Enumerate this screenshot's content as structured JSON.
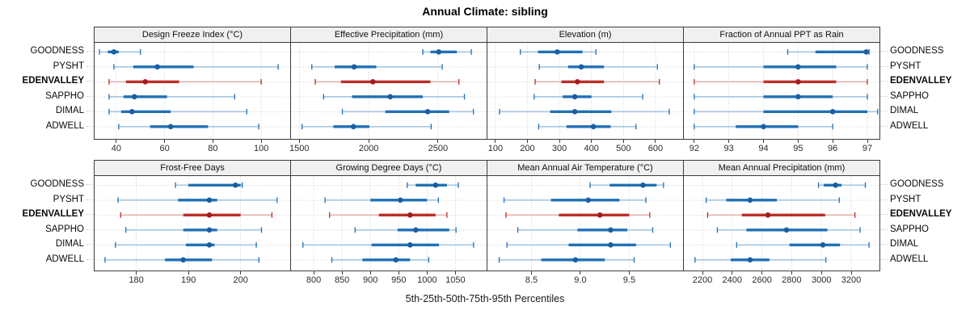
{
  "title": "Annual Climate: sibling",
  "axis_title": "5th-25th-50th-75th-95th Percentiles",
  "stations": [
    {
      "name": "GOODNESS",
      "highlight": false
    },
    {
      "name": "PYSHT",
      "highlight": false
    },
    {
      "name": "EDENVALLEY",
      "highlight": true
    },
    {
      "name": "SAPPHO",
      "highlight": false
    },
    {
      "name": "DIMAL",
      "highlight": false
    },
    {
      "name": "ADWELL",
      "highlight": false
    }
  ],
  "colors": {
    "blue": "#2171b5",
    "blue_light": "#a6c6e2",
    "blue_dot": "#1a5fa0",
    "red": "#bb2e28",
    "red_light": "#e5b1ae",
    "red_dot": "#a31d1d",
    "grid": "#d3d3d3",
    "border": "#3c3c3c",
    "strip_bg": "#f0f0f0"
  },
  "chart_data": [
    {
      "type": "interval",
      "title": "Design Freeze Index (°C)",
      "xlim": [
        31,
        112
      ],
      "ticks": [
        40,
        60,
        80,
        100
      ],
      "tick_labels": [
        "40",
        "60",
        "80",
        "100"
      ],
      "series": [
        {
          "station": "GOODNESS",
          "p": [
            33,
            36.5,
            39,
            41,
            50
          ]
        },
        {
          "station": "PYSHT",
          "p": [
            39,
            47,
            57,
            72,
            107
          ]
        },
        {
          "station": "EDENVALLEY",
          "p": [
            37,
            44,
            52,
            66,
            100
          ]
        },
        {
          "station": "SAPPHO",
          "p": [
            37,
            43,
            47.5,
            61,
            89
          ]
        },
        {
          "station": "DIMAL",
          "p": [
            37,
            42,
            46.5,
            62.5,
            94
          ]
        },
        {
          "station": "ADWELL",
          "p": [
            41,
            54,
            62.5,
            78,
            99
          ]
        }
      ]
    },
    {
      "type": "interval",
      "title": "Effective Precipitation (mm)",
      "xlim": [
        1440,
        2850
      ],
      "ticks": [
        1500,
        2000,
        2500
      ],
      "tick_labels": [
        "1500",
        "2000",
        "2500"
      ],
      "series": [
        {
          "station": "GOODNESS",
          "p": [
            2390,
            2445,
            2505,
            2635,
            2740
          ]
        },
        {
          "station": "PYSHT",
          "p": [
            1590,
            1755,
            1895,
            2055,
            2530
          ]
        },
        {
          "station": "EDENVALLEY",
          "p": [
            1615,
            1800,
            2030,
            2445,
            2650
          ]
        },
        {
          "station": "SAPPHO",
          "p": [
            1675,
            1880,
            2155,
            2390,
            2690
          ]
        },
        {
          "station": "DIMAL",
          "p": [
            1810,
            2120,
            2425,
            2580,
            2755
          ]
        },
        {
          "station": "ADWELL",
          "p": [
            1520,
            1745,
            1890,
            2005,
            2450
          ]
        }
      ]
    },
    {
      "type": "interval",
      "title": "Elevation (m)",
      "xlim": [
        75,
        686
      ],
      "ticks": [
        100,
        200,
        300,
        400,
        500,
        600
      ],
      "tick_labels": [
        "100",
        "200",
        "300",
        "400",
        "500",
        "600"
      ],
      "series": [
        {
          "station": "GOODNESS",
          "p": [
            178,
            233,
            293,
            372,
            414
          ]
        },
        {
          "station": "PYSHT",
          "p": [
            237,
            327,
            368,
            439,
            606
          ]
        },
        {
          "station": "EDENVALLEY",
          "p": [
            224,
            306,
            356,
            439,
            612
          ]
        },
        {
          "station": "SAPPHO",
          "p": [
            221,
            310,
            348,
            400,
            560
          ]
        },
        {
          "station": "DIMAL",
          "p": [
            113,
            271,
            348,
            462,
            643
          ]
        },
        {
          "station": "ADWELL",
          "p": [
            235,
            322,
            406,
            460,
            539
          ]
        }
      ]
    },
    {
      "type": "interval",
      "title": "Fraction of Annual PPT as Rain",
      "xlim": [
        91.7,
        97.35
      ],
      "ticks": [
        92,
        93,
        94,
        95,
        96,
        97
      ],
      "tick_labels": [
        "92",
        "93",
        "94",
        "95",
        "96",
        "97"
      ],
      "series": [
        {
          "station": "GOODNESS",
          "p": [
            94.7,
            95.5,
            96.97,
            97.0,
            97.05
          ]
        },
        {
          "station": "PYSHT",
          "p": [
            92,
            94,
            95,
            96.1,
            97
          ]
        },
        {
          "station": "EDENVALLEY",
          "p": [
            92,
            94,
            95,
            96.1,
            97
          ]
        },
        {
          "station": "SAPPHO",
          "p": [
            92,
            94,
            95,
            96,
            97
          ]
        },
        {
          "station": "DIMAL",
          "p": [
            92,
            94,
            96,
            97,
            97.3
          ]
        },
        {
          "station": "ADWELL",
          "p": [
            92,
            93.2,
            94,
            95,
            96
          ]
        }
      ]
    },
    {
      "type": "interval",
      "title": "Frost-Free Days",
      "xlim": [
        172,
        209.5
      ],
      "ticks": [
        180,
        190,
        200
      ],
      "tick_labels": [
        "180",
        "190",
        "200"
      ],
      "series": [
        {
          "station": "GOODNESS",
          "p": [
            187.5,
            190,
            199,
            200,
            200.3
          ]
        },
        {
          "station": "PYSHT",
          "p": [
            176.5,
            188,
            194,
            195.5,
            207
          ]
        },
        {
          "station": "EDENVALLEY",
          "p": [
            177,
            189,
            194,
            200,
            206
          ]
        },
        {
          "station": "SAPPHO",
          "p": [
            178,
            189,
            194,
            195.5,
            204
          ]
        },
        {
          "station": "DIMAL",
          "p": [
            176,
            189.5,
            194,
            195,
            203
          ]
        },
        {
          "station": "ADWELL",
          "p": [
            174,
            185.5,
            189,
            194.5,
            203.5
          ]
        }
      ]
    },
    {
      "type": "interval",
      "title": "Growing Degree Days (°C)",
      "xlim": [
        760,
        1105
      ],
      "ticks": [
        800,
        850,
        900,
        950,
        1000,
        1050
      ],
      "tick_labels": [
        "800",
        "850",
        "900",
        "950",
        "1000",
        "1050"
      ],
      "series": [
        {
          "station": "GOODNESS",
          "p": [
            965,
            980,
            1015,
            1035,
            1055
          ]
        },
        {
          "station": "PYSHT",
          "p": [
            820,
            900,
            953,
            1000,
            1020
          ]
        },
        {
          "station": "EDENVALLEY",
          "p": [
            828,
            915,
            970,
            1015,
            1035
          ]
        },
        {
          "station": "SAPPHO",
          "p": [
            873,
            948,
            980,
            1039,
            1051
          ]
        },
        {
          "station": "DIMAL",
          "p": [
            781,
            902,
            970,
            1021,
            1082
          ]
        },
        {
          "station": "ADWELL",
          "p": [
            832,
            886,
            945,
            970,
            1003
          ]
        }
      ]
    },
    {
      "type": "interval",
      "title": "Mean Annual Air Temperature (°C)",
      "xlim": [
        8.05,
        10.05
      ],
      "ticks": [
        8.5,
        9.0,
        9.5
      ],
      "tick_labels": [
        "8.5",
        "9.0",
        "9.5"
      ],
      "series": [
        {
          "station": "GOODNESS",
          "p": [
            9.1,
            9.3,
            9.64,
            9.78,
            9.85
          ]
        },
        {
          "station": "PYSHT",
          "p": [
            8.22,
            8.7,
            9.08,
            9.4,
            9.67
          ]
        },
        {
          "station": "EDENVALLEY",
          "p": [
            8.24,
            8.78,
            9.2,
            9.5,
            9.71
          ]
        },
        {
          "station": "SAPPHO",
          "p": [
            8.36,
            8.97,
            9.31,
            9.48,
            9.74
          ]
        },
        {
          "station": "DIMAL",
          "p": [
            8.25,
            8.88,
            9.31,
            9.57,
            9.92
          ]
        },
        {
          "station": "ADWELL",
          "p": [
            8.17,
            8.6,
            8.95,
            9.25,
            9.55
          ]
        }
      ]
    },
    {
      "type": "interval",
      "title": "Mean Annual Precipitation (mm)",
      "xlim": [
        2075,
        3390
      ],
      "ticks": [
        2200,
        2400,
        2600,
        2800,
        3000,
        3200
      ],
      "tick_labels": [
        "2200",
        "2400",
        "2600",
        "2800",
        "3000",
        "3200"
      ],
      "series": [
        {
          "station": "GOODNESS",
          "p": [
            2980,
            3015,
            3095,
            3135,
            3295
          ]
        },
        {
          "station": "PYSHT",
          "p": [
            2225,
            2360,
            2520,
            2700,
            3120
          ]
        },
        {
          "station": "EDENVALLEY",
          "p": [
            2235,
            2465,
            2640,
            3025,
            3225
          ]
        },
        {
          "station": "SAPPHO",
          "p": [
            2300,
            2495,
            2765,
            3040,
            3260
          ]
        },
        {
          "station": "DIMAL",
          "p": [
            2430,
            2785,
            3010,
            3125,
            3320
          ]
        },
        {
          "station": "ADWELL",
          "p": [
            2150,
            2390,
            2520,
            2650,
            3030
          ]
        }
      ]
    }
  ]
}
